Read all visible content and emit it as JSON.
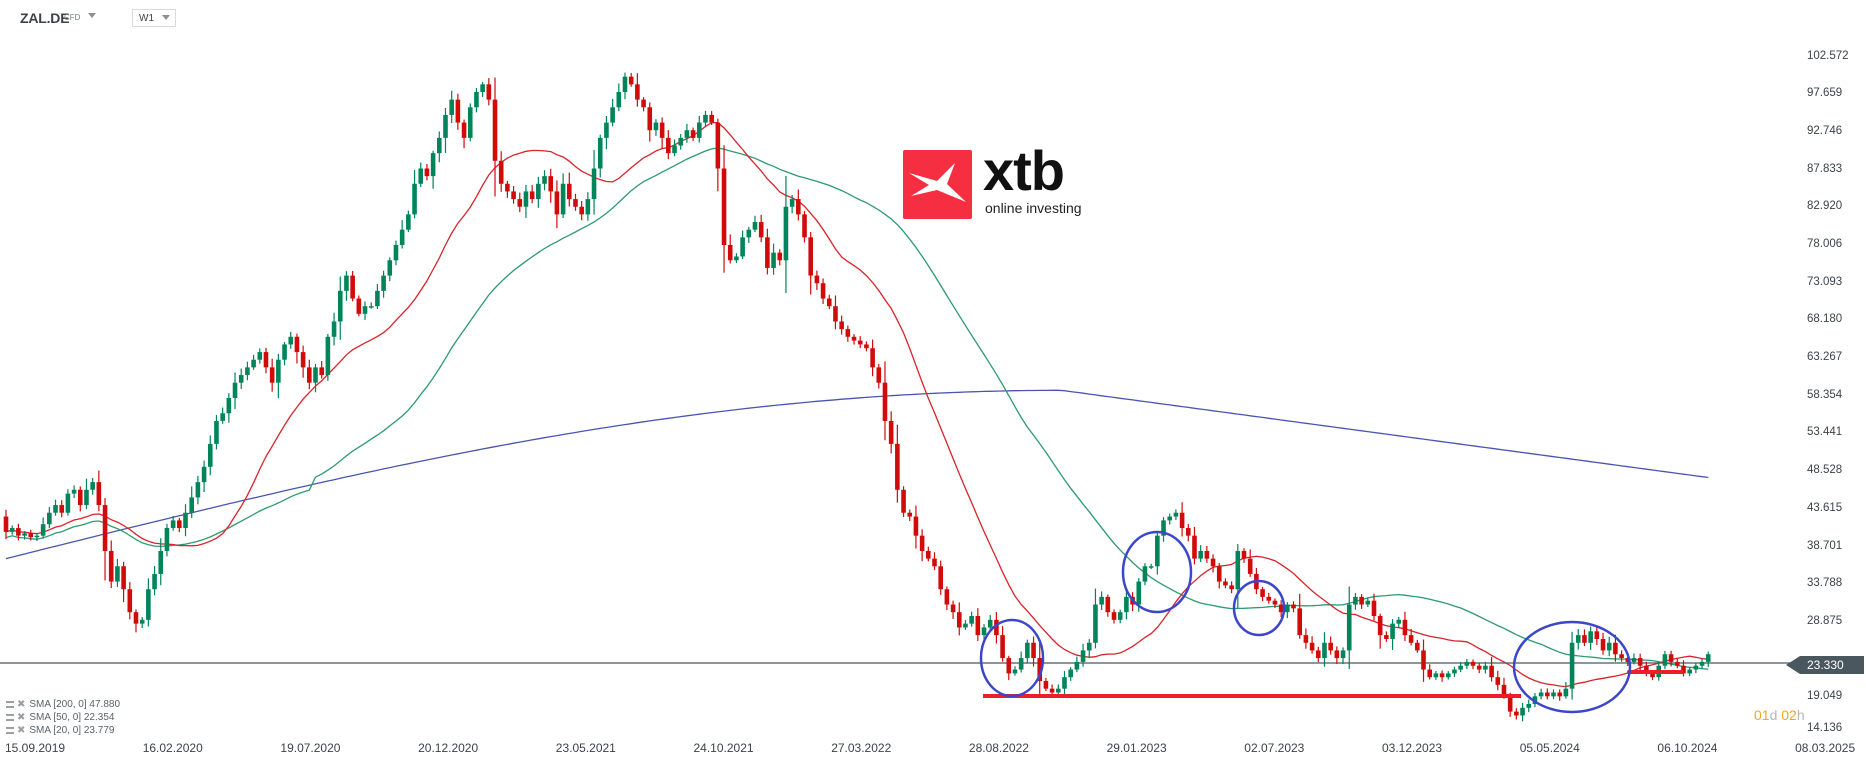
{
  "header": {
    "symbol": "ZAL.DE",
    "symbol_type": "CFD",
    "timeframe": "W1"
  },
  "logo": {
    "brand": "xtb",
    "tagline": "online investing",
    "color": "#f52f41"
  },
  "price_axis": {
    "labels": [
      "102.572",
      "97.659",
      "92.746",
      "87.833",
      "82.920",
      "78.006",
      "73.093",
      "68.180",
      "63.267",
      "58.354",
      "53.441",
      "48.528",
      "43.615",
      "38.701",
      "33.788",
      "28.875",
      "19.049",
      "14.136"
    ],
    "current_price": "23.330"
  },
  "time_axis": {
    "labels": [
      "15.09.2019",
      "16.02.2020",
      "19.07.2020",
      "20.12.2020",
      "23.05.2021",
      "24.10.2021",
      "27.03.2022",
      "28.08.2022",
      "29.01.2023",
      "02.07.2023",
      "03.12.2023",
      "05.05.2024",
      "06.10.2024",
      "08.03.2025"
    ]
  },
  "countdown": {
    "days": "01",
    "days_unit": "d",
    "hours": "02",
    "hours_unit": "h"
  },
  "legend": [
    {
      "label": "SMA [200, 0] 47.880"
    },
    {
      "label": "SMA [50, 0] 22.354"
    },
    {
      "label": "SMA [20, 0] 23.779"
    }
  ],
  "colors": {
    "bull": "#00845a",
    "bear": "#d10a0a",
    "sma20": "#d9232a",
    "sma50": "#2e9a6e",
    "sma200": "#4a55b0",
    "annotation_ellipse": "#3c46c8",
    "annotation_line": "#ee1d2a",
    "current_line": "#4a575f"
  },
  "chart_data": {
    "type": "candlestick",
    "title": "ZAL.DE CFD W1",
    "xlabel": "",
    "ylabel": "",
    "ylim": [
      14.136,
      102.572
    ],
    "x_range": [
      "15.09.2019",
      "08.03.2025"
    ],
    "current_price": 23.33,
    "series": [
      {
        "name": "SMA [200, 0]",
        "last": 47.88
      },
      {
        "name": "SMA [50, 0]",
        "last": 22.354
      },
      {
        "name": "SMA [20, 0]",
        "last": 23.779
      }
    ],
    "price_path_closes": [
      40.5,
      41,
      40,
      40.3,
      39.8,
      40,
      41.5,
      43,
      44,
      43,
      45.5,
      46,
      44,
      46,
      47,
      44,
      38,
      34,
      36,
      33,
      30,
      28.5,
      29,
      33,
      35,
      38,
      41,
      42,
      41,
      43,
      45,
      47,
      49,
      52,
      55,
      56,
      58,
      60,
      61,
      62,
      63,
      64,
      62,
      60,
      63,
      65,
      66,
      64,
      62,
      60,
      62,
      61,
      66,
      68,
      72,
      74,
      71,
      69,
      70,
      70,
      72,
      74,
      76,
      78,
      80,
      82,
      86,
      88,
      87,
      90,
      92,
      95,
      97,
      94,
      92,
      96,
      98,
      99,
      97,
      89,
      86,
      85,
      84,
      83,
      85,
      84,
      86,
      87,
      85,
      82,
      86,
      84,
      83,
      82,
      84,
      88,
      92,
      94,
      96,
      98,
      100,
      99,
      97,
      96,
      93,
      94,
      92,
      90,
      91,
      92,
      93,
      92,
      94,
      95,
      94,
      88,
      78,
      76,
      76.5,
      79,
      80,
      81,
      79,
      75,
      77,
      76,
      83,
      84,
      82,
      79,
      74,
      73,
      71,
      70,
      68,
      67,
      66,
      65.5,
      65,
      64.5,
      62,
      60,
      55,
      52,
      46,
      43,
      42.5,
      40,
      38,
      37,
      36,
      33,
      31,
      30,
      28,
      28.5,
      29.5,
      27,
      28,
      29,
      27,
      24,
      22,
      22.5,
      24,
      26,
      24,
      21,
      20,
      19.5,
      20,
      21.5,
      22.5,
      23.5,
      25,
      26,
      31,
      32,
      30,
      29,
      30,
      32,
      31,
      34,
      36,
      36,
      40,
      42,
      42.5,
      43,
      41,
      40,
      37,
      38,
      37,
      36,
      34,
      33.5,
      33,
      38,
      37,
      35,
      33,
      32,
      31.5,
      31,
      30,
      31,
      30.5,
      27,
      26,
      25,
      24,
      26,
      25,
      24,
      25,
      31,
      32,
      31,
      31.5,
      29.5,
      27,
      26.5,
      28.5,
      29,
      27,
      26,
      25,
      22.5,
      21.5,
      22,
      21.5,
      22,
      22.5,
      23,
      23.5,
      23,
      22.5,
      23,
      21.5,
      20.5,
      19,
      17,
      16.5,
      17.5,
      18,
      19,
      19.5,
      19,
      19.5,
      19,
      20,
      26,
      27,
      26,
      27.5,
      26.5,
      25,
      26,
      24.5,
      24,
      23.5,
      24,
      23,
      22,
      21.5,
      23,
      24.5,
      23.5,
      23,
      22,
      22.5,
      23,
      23.5,
      24.5
    ],
    "annotations": {
      "ellipses": 4,
      "support_lines": [
        {
          "price": 19.6,
          "from": "07.2022",
          "to": "03.2024"
        },
        {
          "price": 22.5,
          "from": "09.2024",
          "to": "11.2024"
        }
      ]
    }
  }
}
